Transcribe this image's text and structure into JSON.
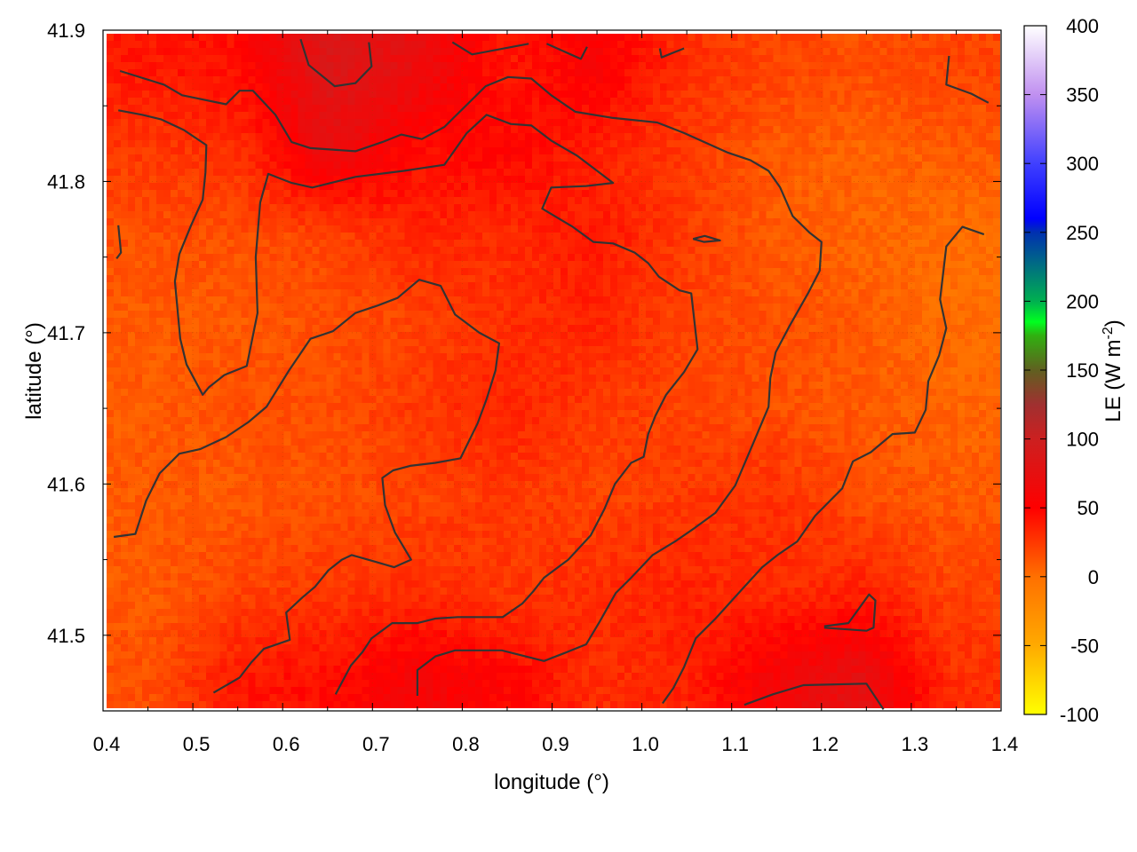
{
  "chart_data": {
    "type": "heatmap",
    "title": "",
    "xlabel": "longitude (°)",
    "ylabel": "latitude (°)",
    "xlim": [
      0.4,
      1.4
    ],
    "ylim": [
      41.45,
      41.9
    ],
    "xticks": [
      "0.4",
      "0.5",
      "0.6",
      "0.7",
      "0.8",
      "0.9",
      "1.0",
      "1.1",
      "1.2",
      "1.3",
      "1.4"
    ],
    "yticks": [
      "41.5",
      "41.6",
      "41.7",
      "41.8",
      "41.9"
    ],
    "grid": true,
    "colorbar": {
      "label_main": "LE (W m",
      "label_sup": "-2",
      "label_close": ")",
      "range": [
        -100,
        400
      ],
      "ticks": [
        "-100",
        "-50",
        "0",
        "50",
        "100",
        "150",
        "200",
        "250",
        "300",
        "350",
        "400"
      ],
      "palette": [
        [
          -100,
          "#ffff00"
        ],
        [
          -50,
          "#ffaa00"
        ],
        [
          0,
          "#ff7000"
        ],
        [
          50,
          "#ff0000"
        ],
        [
          100,
          "#cc2020"
        ],
        [
          125,
          "#a03030"
        ],
        [
          150,
          "#606020"
        ],
        [
          175,
          "#30b010"
        ],
        [
          185,
          "#00ff20"
        ],
        [
          200,
          "#00b050"
        ],
        [
          225,
          "#007080"
        ],
        [
          250,
          "#0030b0"
        ],
        [
          260,
          "#0000ff"
        ],
        [
          300,
          "#4040ff"
        ],
        [
          350,
          "#c090f0"
        ],
        [
          400,
          "#ffffff"
        ]
      ]
    },
    "grid_lon": [
      0.45,
      0.55,
      0.65,
      0.75,
      0.85,
      0.95,
      1.05,
      1.15,
      1.25,
      1.35
    ],
    "grid_lat": [
      41.875,
      41.82,
      41.765,
      41.71,
      41.65,
      41.59,
      41.53,
      41.47
    ],
    "values": [
      [
        40,
        45,
        85,
        70,
        40,
        55,
        30,
        20,
        15,
        20
      ],
      [
        25,
        30,
        70,
        45,
        50,
        35,
        25,
        10,
        5,
        10
      ],
      [
        15,
        15,
        20,
        35,
        30,
        40,
        25,
        10,
        5,
        0
      ],
      [
        10,
        10,
        15,
        20,
        30,
        35,
        20,
        15,
        10,
        0
      ],
      [
        10,
        15,
        15,
        25,
        35,
        25,
        20,
        15,
        10,
        5
      ],
      [
        10,
        10,
        15,
        20,
        25,
        20,
        25,
        30,
        15,
        10
      ],
      [
        10,
        20,
        25,
        30,
        25,
        30,
        35,
        30,
        35,
        20
      ],
      [
        15,
        40,
        45,
        60,
        50,
        30,
        35,
        60,
        75,
        30
      ]
    ],
    "contour_color": "#333333",
    "contours": [
      [
        [
          0.419,
          41.873
        ],
        [
          0.468,
          41.864
        ],
        [
          0.488,
          41.857
        ],
        [
          0.537,
          41.851
        ],
        [
          0.552,
          41.86
        ],
        [
          0.567,
          41.86
        ],
        [
          0.592,
          41.844
        ],
        [
          0.61,
          41.826
        ],
        [
          0.631,
          41.822
        ],
        [
          0.681,
          41.82
        ],
        [
          0.711,
          41.826
        ],
        [
          0.732,
          41.831
        ],
        [
          0.755,
          41.828
        ],
        [
          0.78,
          41.836
        ],
        [
          0.826,
          41.863
        ],
        [
          0.851,
          41.869
        ],
        [
          0.877,
          41.868
        ],
        [
          0.899,
          41.857
        ],
        [
          0.926,
          41.846
        ],
        [
          0.968,
          41.842
        ],
        [
          1.017,
          41.839
        ],
        [
          1.047,
          41.832
        ],
        [
          1.096,
          41.819
        ],
        [
          1.121,
          41.814
        ],
        [
          1.141,
          41.807
        ],
        [
          1.154,
          41.796
        ],
        [
          1.168,
          41.777
        ],
        [
          1.187,
          41.766
        ],
        [
          1.2,
          41.76
        ],
        [
          1.198,
          41.741
        ],
        [
          1.185,
          41.726
        ],
        [
          1.164,
          41.704
        ],
        [
          1.149,
          41.687
        ],
        [
          1.143,
          41.67
        ],
        [
          1.141,
          41.651
        ],
        [
          1.124,
          41.627
        ],
        [
          1.104,
          41.599
        ],
        [
          1.082,
          41.581
        ],
        [
          1.059,
          41.571
        ],
        [
          1.037,
          41.562
        ],
        [
          1.012,
          41.553
        ],
        [
          0.988,
          41.538
        ],
        [
          0.971,
          41.528
        ],
        [
          0.953,
          41.509
        ],
        [
          0.938,
          41.494
        ],
        [
          0.913,
          41.488
        ],
        [
          0.891,
          41.483
        ],
        [
          0.844,
          41.49
        ],
        [
          0.792,
          41.49
        ],
        [
          0.77,
          41.486
        ],
        [
          0.75,
          41.477
        ],
        [
          0.75,
          41.46
        ]
      ],
      [
        [
          0.412,
          41.565
        ],
        [
          0.436,
          41.567
        ],
        [
          0.448,
          41.589
        ],
        [
          0.463,
          41.607
        ],
        [
          0.485,
          41.62
        ],
        [
          0.508,
          41.623
        ],
        [
          0.537,
          41.631
        ],
        [
          0.562,
          41.641
        ],
        [
          0.582,
          41.651
        ],
        [
          0.607,
          41.675
        ],
        [
          0.631,
          41.696
        ],
        [
          0.656,
          41.701
        ],
        [
          0.681,
          41.713
        ],
        [
          0.706,
          41.718
        ],
        [
          0.728,
          41.723
        ],
        [
          0.752,
          41.735
        ],
        [
          0.776,
          41.731
        ],
        [
          0.792,
          41.712
        ],
        [
          0.819,
          41.7
        ],
        [
          0.841,
          41.693
        ],
        [
          0.837,
          41.675
        ],
        [
          0.827,
          41.656
        ],
        [
          0.817,
          41.64
        ],
        [
          0.798,
          41.617
        ],
        [
          0.77,
          41.614
        ],
        [
          0.742,
          41.612
        ],
        [
          0.723,
          41.609
        ],
        [
          0.711,
          41.604
        ],
        [
          0.714,
          41.586
        ],
        [
          0.725,
          41.568
        ],
        [
          0.743,
          41.55
        ],
        [
          0.724,
          41.545
        ],
        [
          0.701,
          41.549
        ],
        [
          0.677,
          41.553
        ],
        [
          0.666,
          41.55
        ],
        [
          0.651,
          41.543
        ],
        [
          0.636,
          41.532
        ],
        [
          0.622,
          41.525
        ],
        [
          0.604,
          41.515
        ],
        [
          0.608,
          41.497
        ],
        [
          0.579,
          41.491
        ],
        [
          0.565,
          41.482
        ],
        [
          0.552,
          41.472
        ],
        [
          0.523,
          41.462
        ]
      ],
      [
        [
          0.417,
          41.847
        ],
        [
          0.444,
          41.844
        ],
        [
          0.465,
          41.841
        ],
        [
          0.49,
          41.834
        ],
        [
          0.515,
          41.824
        ],
        [
          0.514,
          41.806
        ],
        [
          0.511,
          41.788
        ],
        [
          0.498,
          41.771
        ],
        [
          0.485,
          41.752
        ],
        [
          0.48,
          41.734
        ],
        [
          0.483,
          41.715
        ],
        [
          0.486,
          41.696
        ],
        [
          0.493,
          41.679
        ],
        [
          0.511,
          41.659
        ],
        [
          0.518,
          41.664
        ],
        [
          0.535,
          41.672
        ],
        [
          0.56,
          41.678
        ],
        [
          0.572,
          41.713
        ],
        [
          0.57,
          41.75
        ],
        [
          0.575,
          41.786
        ],
        [
          0.584,
          41.805
        ],
        [
          0.61,
          41.799
        ],
        [
          0.633,
          41.796
        ],
        [
          0.681,
          41.803
        ],
        [
          0.735,
          41.807
        ],
        [
          0.78,
          41.811
        ],
        [
          0.805,
          41.832
        ],
        [
          0.827,
          41.844
        ],
        [
          0.854,
          41.838
        ],
        [
          0.877,
          41.837
        ],
        [
          0.899,
          41.827
        ],
        [
          0.928,
          41.817
        ],
        [
          0.968,
          41.799
        ],
        [
          0.938,
          41.797
        ],
        [
          0.899,
          41.796
        ],
        [
          0.889,
          41.782
        ],
        [
          0.923,
          41.77
        ],
        [
          0.946,
          41.76
        ],
        [
          0.968,
          41.759
        ],
        [
          0.992,
          41.753
        ],
        [
          1.007,
          41.746
        ],
        [
          1.019,
          41.737
        ],
        [
          1.042,
          41.728
        ],
        [
          1.055,
          41.726
        ],
        [
          1.062,
          41.689
        ],
        [
          1.047,
          41.674
        ],
        [
          1.027,
          41.659
        ],
        [
          1.015,
          41.645
        ],
        [
          1.007,
          41.633
        ],
        [
          1.002,
          41.618
        ],
        [
          0.988,
          41.614
        ],
        [
          0.97,
          41.6
        ],
        [
          0.958,
          41.583
        ],
        [
          0.943,
          41.566
        ],
        [
          0.918,
          41.55
        ],
        [
          0.891,
          41.538
        ],
        [
          0.879,
          41.529
        ],
        [
          0.867,
          41.521
        ],
        [
          0.845,
          41.512
        ],
        [
          0.795,
          41.512
        ],
        [
          0.77,
          41.511
        ],
        [
          0.75,
          41.508
        ],
        [
          0.722,
          41.508
        ],
        [
          0.699,
          41.498
        ],
        [
          0.689,
          41.489
        ],
        [
          0.676,
          41.48
        ],
        [
          0.659,
          41.461
        ]
      ],
      [
        [
          1.381,
          41.765
        ],
        [
          1.357,
          41.77
        ],
        [
          1.339,
          41.757
        ],
        [
          1.332,
          41.722
        ],
        [
          1.339,
          41.703
        ],
        [
          1.331,
          41.685
        ],
        [
          1.319,
          41.668
        ],
        [
          1.316,
          41.649
        ],
        [
          1.304,
          41.634
        ],
        [
          1.279,
          41.633
        ],
        [
          1.255,
          41.621
        ],
        [
          1.235,
          41.615
        ],
        [
          1.223,
          41.597
        ],
        [
          1.193,
          41.579
        ],
        [
          1.173,
          41.562
        ],
        [
          1.151,
          41.553
        ],
        [
          1.134,
          41.545
        ],
        [
          1.111,
          41.53
        ],
        [
          1.082,
          41.511
        ],
        [
          1.06,
          41.498
        ],
        [
          1.047,
          41.479
        ],
        [
          1.035,
          41.465
        ],
        [
          1.023,
          41.455
        ]
      ],
      [
        [
          0.62,
          41.894
        ],
        [
          0.629,
          41.877
        ],
        [
          0.658,
          41.863
        ],
        [
          0.681,
          41.865
        ],
        [
          0.699,
          41.876
        ],
        [
          0.696,
          41.892
        ]
      ],
      [
        [
          0.789,
          41.892
        ],
        [
          0.811,
          41.884
        ],
        [
          0.874,
          41.891
        ]
      ],
      [
        [
          0.894,
          41.891
        ],
        [
          0.932,
          41.881
        ],
        [
          0.939,
          41.889
        ]
      ],
      [
        [
          1.02,
          41.888
        ],
        [
          1.022,
          41.882
        ],
        [
          1.047,
          41.888
        ]
      ],
      [
        [
          1.342,
          41.883
        ],
        [
          1.339,
          41.864
        ],
        [
          1.367,
          41.858
        ],
        [
          1.386,
          41.852
        ]
      ],
      [
        [
          0.417,
          41.771
        ],
        [
          0.42,
          41.753
        ],
        [
          0.415,
          41.749
        ]
      ],
      [
        [
          1.057,
          41.762
        ],
        [
          1.07,
          41.764
        ],
        [
          1.087,
          41.761
        ],
        [
          1.069,
          41.76
        ],
        [
          1.057,
          41.762
        ]
      ],
      [
        [
          1.203,
          41.506
        ],
        [
          1.23,
          41.508
        ],
        [
          1.253,
          41.527
        ],
        [
          1.26,
          41.523
        ],
        [
          1.258,
          41.505
        ],
        [
          1.25,
          41.503
        ],
        [
          1.203,
          41.505
        ]
      ],
      [
        [
          1.114,
          41.454
        ],
        [
          1.146,
          41.461
        ],
        [
          1.18,
          41.467
        ],
        [
          1.25,
          41.468
        ],
        [
          1.269,
          41.451
        ]
      ]
    ]
  }
}
